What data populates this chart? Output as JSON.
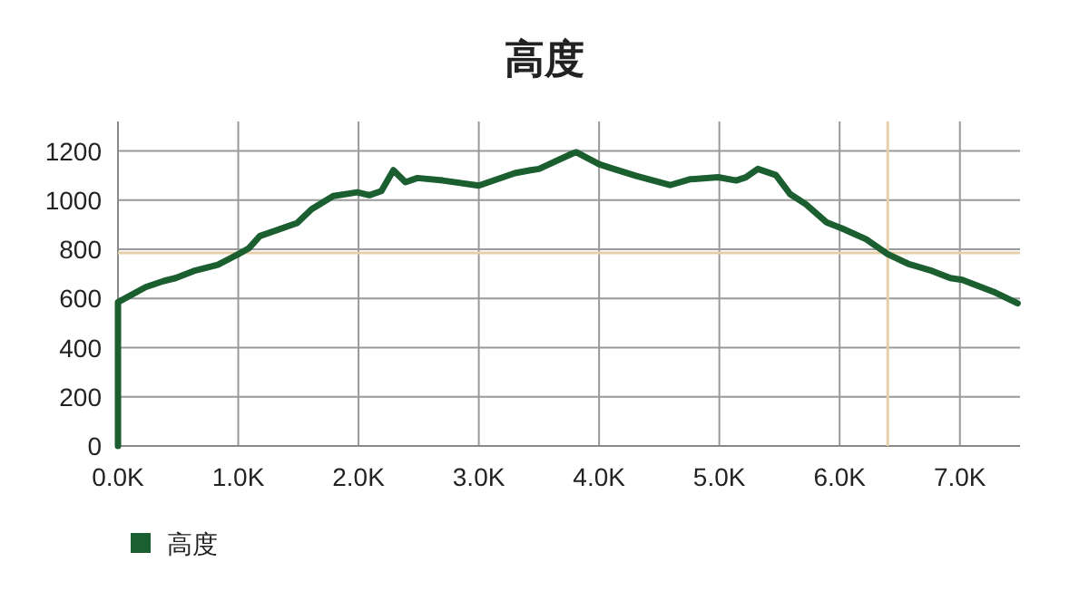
{
  "chart_data": {
    "type": "line",
    "title": "高度",
    "x": [
      0,
      0,
      230,
      380,
      480,
      630,
      830,
      1000,
      1090,
      1180,
      1490,
      1610,
      1790,
      1990,
      2090,
      2190,
      2290,
      2390,
      2490,
      2700,
      3000,
      3300,
      3430,
      3500,
      3780,
      3810,
      4000,
      4110,
      4310,
      4590,
      4760,
      4990,
      5140,
      5220,
      5320,
      5470,
      5590,
      5720,
      5890,
      6020,
      6220,
      6400,
      6570,
      6770,
      6920,
      7020,
      7280,
      7480
    ],
    "series": [
      {
        "name": "高度",
        "color": "#1b5e30",
        "values": [
          0,
          585,
          646,
          671,
          683,
          712,
          737,
          780,
          805,
          854,
          907,
          963,
          1017,
          1032,
          1020,
          1037,
          1122,
          1073,
          1090,
          1080,
          1059,
          1110,
          1122,
          1127,
          1190,
          1195,
          1146,
          1129,
          1098,
          1061,
          1085,
          1093,
          1080,
          1093,
          1127,
          1102,
          1024,
          983,
          910,
          885,
          841,
          780,
          741,
          712,
          683,
          676,
          627,
          580
        ]
      }
    ],
    "xlim": [
      0,
      7500
    ],
    "xticks": [
      {
        "value": 0,
        "label": "0.0K"
      },
      {
        "value": 1000,
        "label": "1.0K"
      },
      {
        "value": 2000,
        "label": "2.0K"
      },
      {
        "value": 3000,
        "label": "3.0K"
      },
      {
        "value": 4000,
        "label": "4.0K"
      },
      {
        "value": 5000,
        "label": "5.0K"
      },
      {
        "value": 6000,
        "label": "6.0K"
      },
      {
        "value": 7000,
        "label": "7.0K"
      }
    ],
    "ylim": [
      0,
      1320
    ],
    "yticks": [
      0,
      200,
      400,
      600,
      800,
      1000,
      1200
    ],
    "ref_lines": [
      {
        "axis": "x",
        "value": 6400,
        "color": "#e6cfa8"
      },
      {
        "axis": "y",
        "value": 785,
        "color": "#e6cfa8"
      }
    ],
    "grid": true,
    "legend": "bottom",
    "marker": "none",
    "line_style": "solid"
  }
}
